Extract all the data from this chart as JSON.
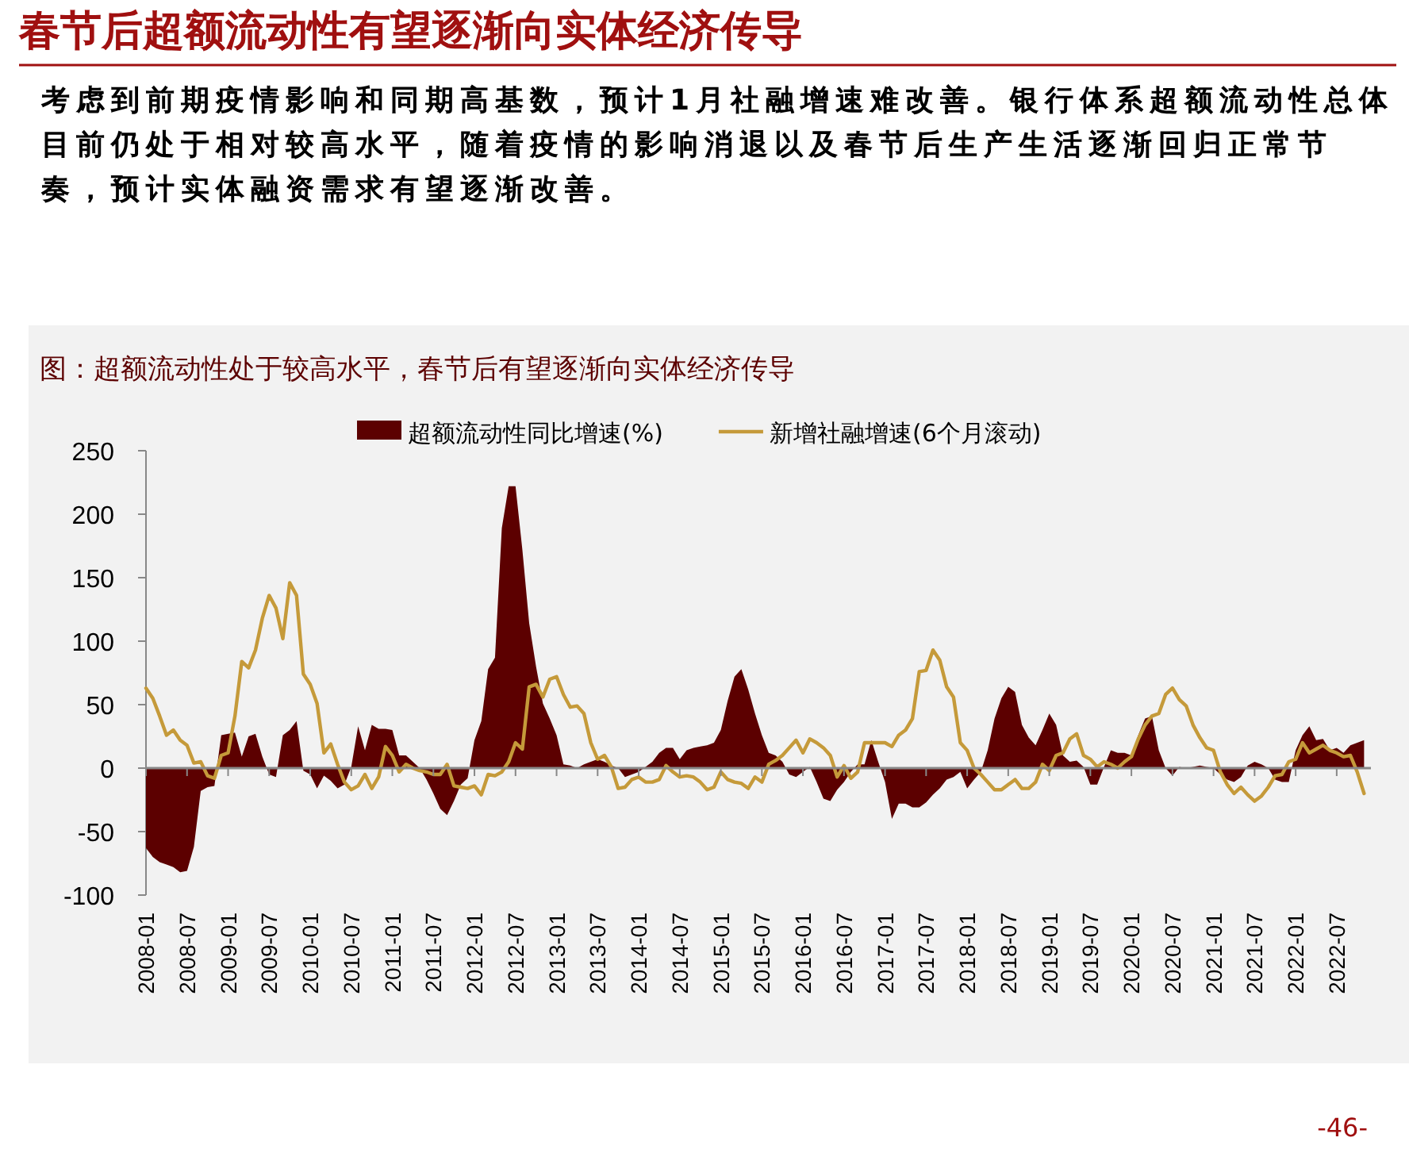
{
  "chart_data": {
    "type": "area",
    "title": "春节后超额流动性有望逐渐向实体经济传导",
    "subtitle": "考虑到前期疫情影响和同期高基数，预计1月社融增速难改善。银行体系超额流动性总体目前仍处于相对较高水平，随着疫情的影响消退以及春节后生产生活逐渐回归正常节奏，预计实体融资需求有望逐渐改善。",
    "annotations": [
      "图：超额流动性处于较高水平，春节后有望逐渐向实体经济传导",
      "-46-"
    ],
    "x": [
      "2008-01",
      "2008-02",
      "2008-03",
      "2008-04",
      "2008-05",
      "2008-06",
      "2008-07",
      "2008-08",
      "2008-09",
      "2008-10",
      "2008-11",
      "2008-12",
      "2009-01",
      "2009-02",
      "2009-03",
      "2009-04",
      "2009-05",
      "2009-06",
      "2009-07",
      "2009-08",
      "2009-09",
      "2009-10",
      "2009-11",
      "2009-12",
      "2010-01",
      "2010-02",
      "2010-03",
      "2010-04",
      "2010-05",
      "2010-06",
      "2010-07",
      "2010-08",
      "2010-09",
      "2010-10",
      "2010-11",
      "2010-12",
      "2011-01",
      "2011-02",
      "2011-03",
      "2011-04",
      "2011-05",
      "2011-06",
      "2011-07",
      "2011-08",
      "2011-09",
      "2011-10",
      "2011-11",
      "2011-12",
      "2012-01",
      "2012-02",
      "2012-03",
      "2012-04",
      "2012-05",
      "2012-06",
      "2012-07",
      "2012-08",
      "2012-09",
      "2012-10",
      "2012-11",
      "2012-12",
      "2013-01",
      "2013-02",
      "2013-03",
      "2013-04",
      "2013-05",
      "2013-06",
      "2013-07",
      "2013-08",
      "2013-09",
      "2013-10",
      "2013-11",
      "2013-12",
      "2014-01",
      "2014-02",
      "2014-03",
      "2014-04",
      "2014-05",
      "2014-06",
      "2014-07",
      "2014-08",
      "2014-09",
      "2014-10",
      "2014-11",
      "2014-12",
      "2015-01",
      "2015-02",
      "2015-03",
      "2015-04",
      "2015-05",
      "2015-06",
      "2015-07",
      "2015-08",
      "2015-09",
      "2015-10",
      "2015-11",
      "2015-12",
      "2016-01",
      "2016-02",
      "2016-03",
      "2016-04",
      "2016-05",
      "2016-06",
      "2016-07",
      "2016-08",
      "2016-09",
      "2016-10",
      "2016-11",
      "2016-12",
      "2017-01",
      "2017-02",
      "2017-03",
      "2017-04",
      "2017-05",
      "2017-06",
      "2017-07",
      "2017-08",
      "2017-09",
      "2017-10",
      "2017-11",
      "2017-12",
      "2018-01",
      "2018-02",
      "2018-03",
      "2018-04",
      "2018-05",
      "2018-06",
      "2018-07",
      "2018-08",
      "2018-09",
      "2018-10",
      "2018-11",
      "2018-12",
      "2019-01",
      "2019-02",
      "2019-03",
      "2019-04",
      "2019-05",
      "2019-06",
      "2019-07",
      "2019-08",
      "2019-09",
      "2019-10",
      "2019-11",
      "2019-12",
      "2020-01",
      "2020-02",
      "2020-03",
      "2020-04",
      "2020-05",
      "2020-06",
      "2020-07",
      "2020-08",
      "2020-09",
      "2020-10",
      "2020-11",
      "2020-12",
      "2021-01",
      "2021-02",
      "2021-03",
      "2021-04",
      "2021-05",
      "2021-06",
      "2021-07",
      "2021-08",
      "2021-09",
      "2021-10",
      "2021-11",
      "2021-12",
      "2022-01",
      "2022-02",
      "2022-03",
      "2022-04",
      "2022-05",
      "2022-06",
      "2022-07",
      "2022-08",
      "2022-09",
      "2022-10",
      "2022-11"
    ],
    "series": [
      {
        "name": "超额流动性同比增速(%)",
        "color": "#5c0000",
        "values": [
          -63,
          -70,
          -74,
          -76,
          -78,
          -82,
          -81,
          -62,
          -18,
          -15,
          -14,
          26,
          27,
          28,
          9,
          25,
          27,
          9,
          -5,
          -7,
          26,
          30,
          37,
          -2,
          -5,
          -16,
          -6,
          -10,
          -16,
          -13,
          1,
          33,
          14,
          34,
          31,
          31,
          30,
          10,
          10,
          5,
          0,
          -9,
          -20,
          -32,
          -37,
          -26,
          -13,
          -8,
          22,
          37,
          78,
          87,
          189,
          222,
          222,
          172,
          114,
          80,
          51,
          39,
          26,
          3,
          2,
          0,
          3,
          5,
          7,
          5,
          2,
          0,
          -7,
          -5,
          -3,
          1,
          5,
          12,
          16,
          16,
          7,
          14,
          16,
          17,
          18,
          20,
          30,
          53,
          72,
          78,
          62,
          43,
          26,
          12,
          10,
          5,
          -5,
          -7,
          -3,
          1,
          -11,
          -24,
          -26,
          -17,
          -11,
          -3,
          3,
          3,
          22,
          5,
          -11,
          -40,
          -28,
          -28,
          -31,
          -31,
          -27,
          -21,
          -16,
          -9,
          -7,
          -3,
          -16,
          -9,
          -3,
          14,
          39,
          55,
          64,
          60,
          34,
          24,
          18,
          30,
          43,
          34,
          10,
          5,
          6,
          1,
          -13,
          -13,
          1,
          14,
          12,
          12,
          10,
          26,
          39,
          41,
          14,
          0,
          -6,
          1,
          0,
          1,
          2,
          1,
          0,
          -5,
          -9,
          -11,
          -7,
          2,
          5,
          3,
          0,
          -9,
          -11,
          -11,
          14,
          26,
          33,
          22,
          23,
          14,
          16,
          12,
          18,
          20,
          22
        ]
      },
      {
        "name": "新增社融增速(6个月滚动)",
        "type": "line",
        "color": "#c59a3a",
        "values": [
          63,
          55,
          41,
          26,
          30,
          22,
          18,
          4,
          5,
          -6,
          -8,
          10,
          12,
          41,
          84,
          79,
          93,
          118,
          136,
          126,
          102,
          146,
          136,
          74,
          66,
          51,
          12,
          19,
          3,
          -11,
          -17,
          -14,
          -5,
          -16,
          -7,
          17,
          10,
          -3,
          3,
          0,
          -2,
          -3,
          -5,
          -5,
          3,
          -14,
          -15,
          -16,
          -14,
          -21,
          -5,
          -6,
          -3,
          5,
          20,
          15,
          64,
          66,
          56,
          70,
          72,
          58,
          48,
          49,
          43,
          20,
          7,
          10,
          1,
          -16,
          -15,
          -9,
          -7,
          -11,
          -11,
          -9,
          2,
          -3,
          -7,
          -6,
          -7,
          -11,
          -17,
          -15,
          -3,
          -9,
          -11,
          -12,
          -16,
          -7,
          -11,
          3,
          6,
          10,
          16,
          22,
          12,
          23,
          20,
          16,
          10,
          -7,
          2,
          -8,
          -3,
          20,
          20,
          20,
          20,
          17,
          26,
          30,
          39,
          76,
          77,
          93,
          85,
          64,
          56,
          20,
          14,
          0,
          -5,
          -11,
          -17,
          -17,
          -13,
          -9,
          -16,
          -16,
          -11,
          3,
          -2,
          10,
          12,
          23,
          27,
          10,
          7,
          1,
          5,
          3,
          0,
          5,
          9,
          23,
          34,
          41,
          43,
          58,
          63,
          54,
          49,
          34,
          24,
          16,
          14,
          -3,
          -13,
          -20,
          -15,
          -21,
          -26,
          -22,
          -15,
          -6,
          -5,
          5,
          7,
          20,
          12,
          15,
          18,
          14,
          12,
          9,
          10,
          -3,
          -20
        ]
      }
    ],
    "xlim": [
      "2008-01",
      "2022-12"
    ],
    "xticks": [
      "2008-01",
      "2008-07",
      "2009-01",
      "2009-07",
      "2010-01",
      "2010-07",
      "2011-01",
      "2011-07",
      "2012-01",
      "2012-07",
      "2013-01",
      "2013-07",
      "2014-01",
      "2014-07",
      "2015-01",
      "2015-07",
      "2016-01",
      "2016-07",
      "2017-01",
      "2017-07",
      "2018-01",
      "2018-07",
      "2019-01",
      "2019-07",
      "2020-01",
      "2020-07",
      "2021-01",
      "2021-07",
      "2022-01",
      "2022-07"
    ],
    "ylim": [
      -100,
      250
    ],
    "yticks": [
      -100,
      -50,
      0,
      50,
      100,
      150,
      200,
      250
    ],
    "legend": "top"
  }
}
